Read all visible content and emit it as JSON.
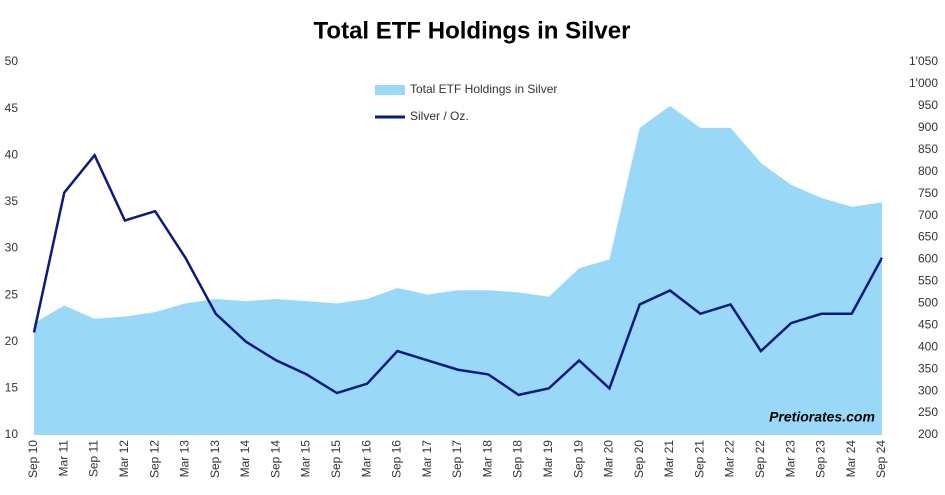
{
  "chart_data": {
    "type": "line",
    "title": "Total ETF Holdings in Silver",
    "categories": [
      "Sep 10",
      "Mar 11",
      "Sep 11",
      "Mar 12",
      "Sep 12",
      "Mar 13",
      "Sep 13",
      "Mar 14",
      "Sep 14",
      "Mar 15",
      "Sep 15",
      "Mar 16",
      "Sep 16",
      "Mar 17",
      "Sep 17",
      "Mar 18",
      "Sep 18",
      "Mar 19",
      "Sep 19",
      "Mar 20",
      "Sep 20",
      "Mar 21",
      "Sep 21",
      "Mar 22",
      "Sep 22",
      "Mar 23",
      "Sep 23",
      "Mar 24",
      "Sep 24"
    ],
    "series": [
      {
        "name": "Total ETF Holdings in Silver",
        "color": "#9ad8f8",
        "axis": "y2",
        "values": [
          455,
          495,
          465,
          470,
          480,
          500,
          510,
          505,
          510,
          505,
          500,
          510,
          535,
          520,
          530,
          530,
          525,
          515,
          580,
          600,
          900,
          950,
          900,
          900,
          820,
          770,
          740,
          720,
          730
        ]
      },
      {
        "name": "Silver / Oz.",
        "color": "#0b1a7e",
        "values": [
          21,
          36,
          40,
          33,
          34,
          29,
          23,
          20,
          18,
          16.5,
          14.5,
          15.5,
          19,
          18,
          17,
          16.5,
          14.3,
          15,
          18,
          15,
          24,
          25.5,
          23,
          24,
          19,
          22,
          23,
          23,
          29
        ]
      }
    ],
    "ylim": [
      10,
      50
    ],
    "yticks": [
      10,
      15,
      20,
      25,
      30,
      35,
      40,
      45,
      50
    ],
    "y2lim": [
      200,
      1050
    ],
    "y2ticks": [
      200,
      250,
      300,
      350,
      400,
      450,
      500,
      550,
      600,
      650,
      700,
      750,
      800,
      850,
      900,
      950,
      {
        "value": 1000,
        "label": "1'000"
      },
      {
        "value": 1050,
        "label": "1'050"
      }
    ],
    "annotation": "Pretiorates.com"
  }
}
